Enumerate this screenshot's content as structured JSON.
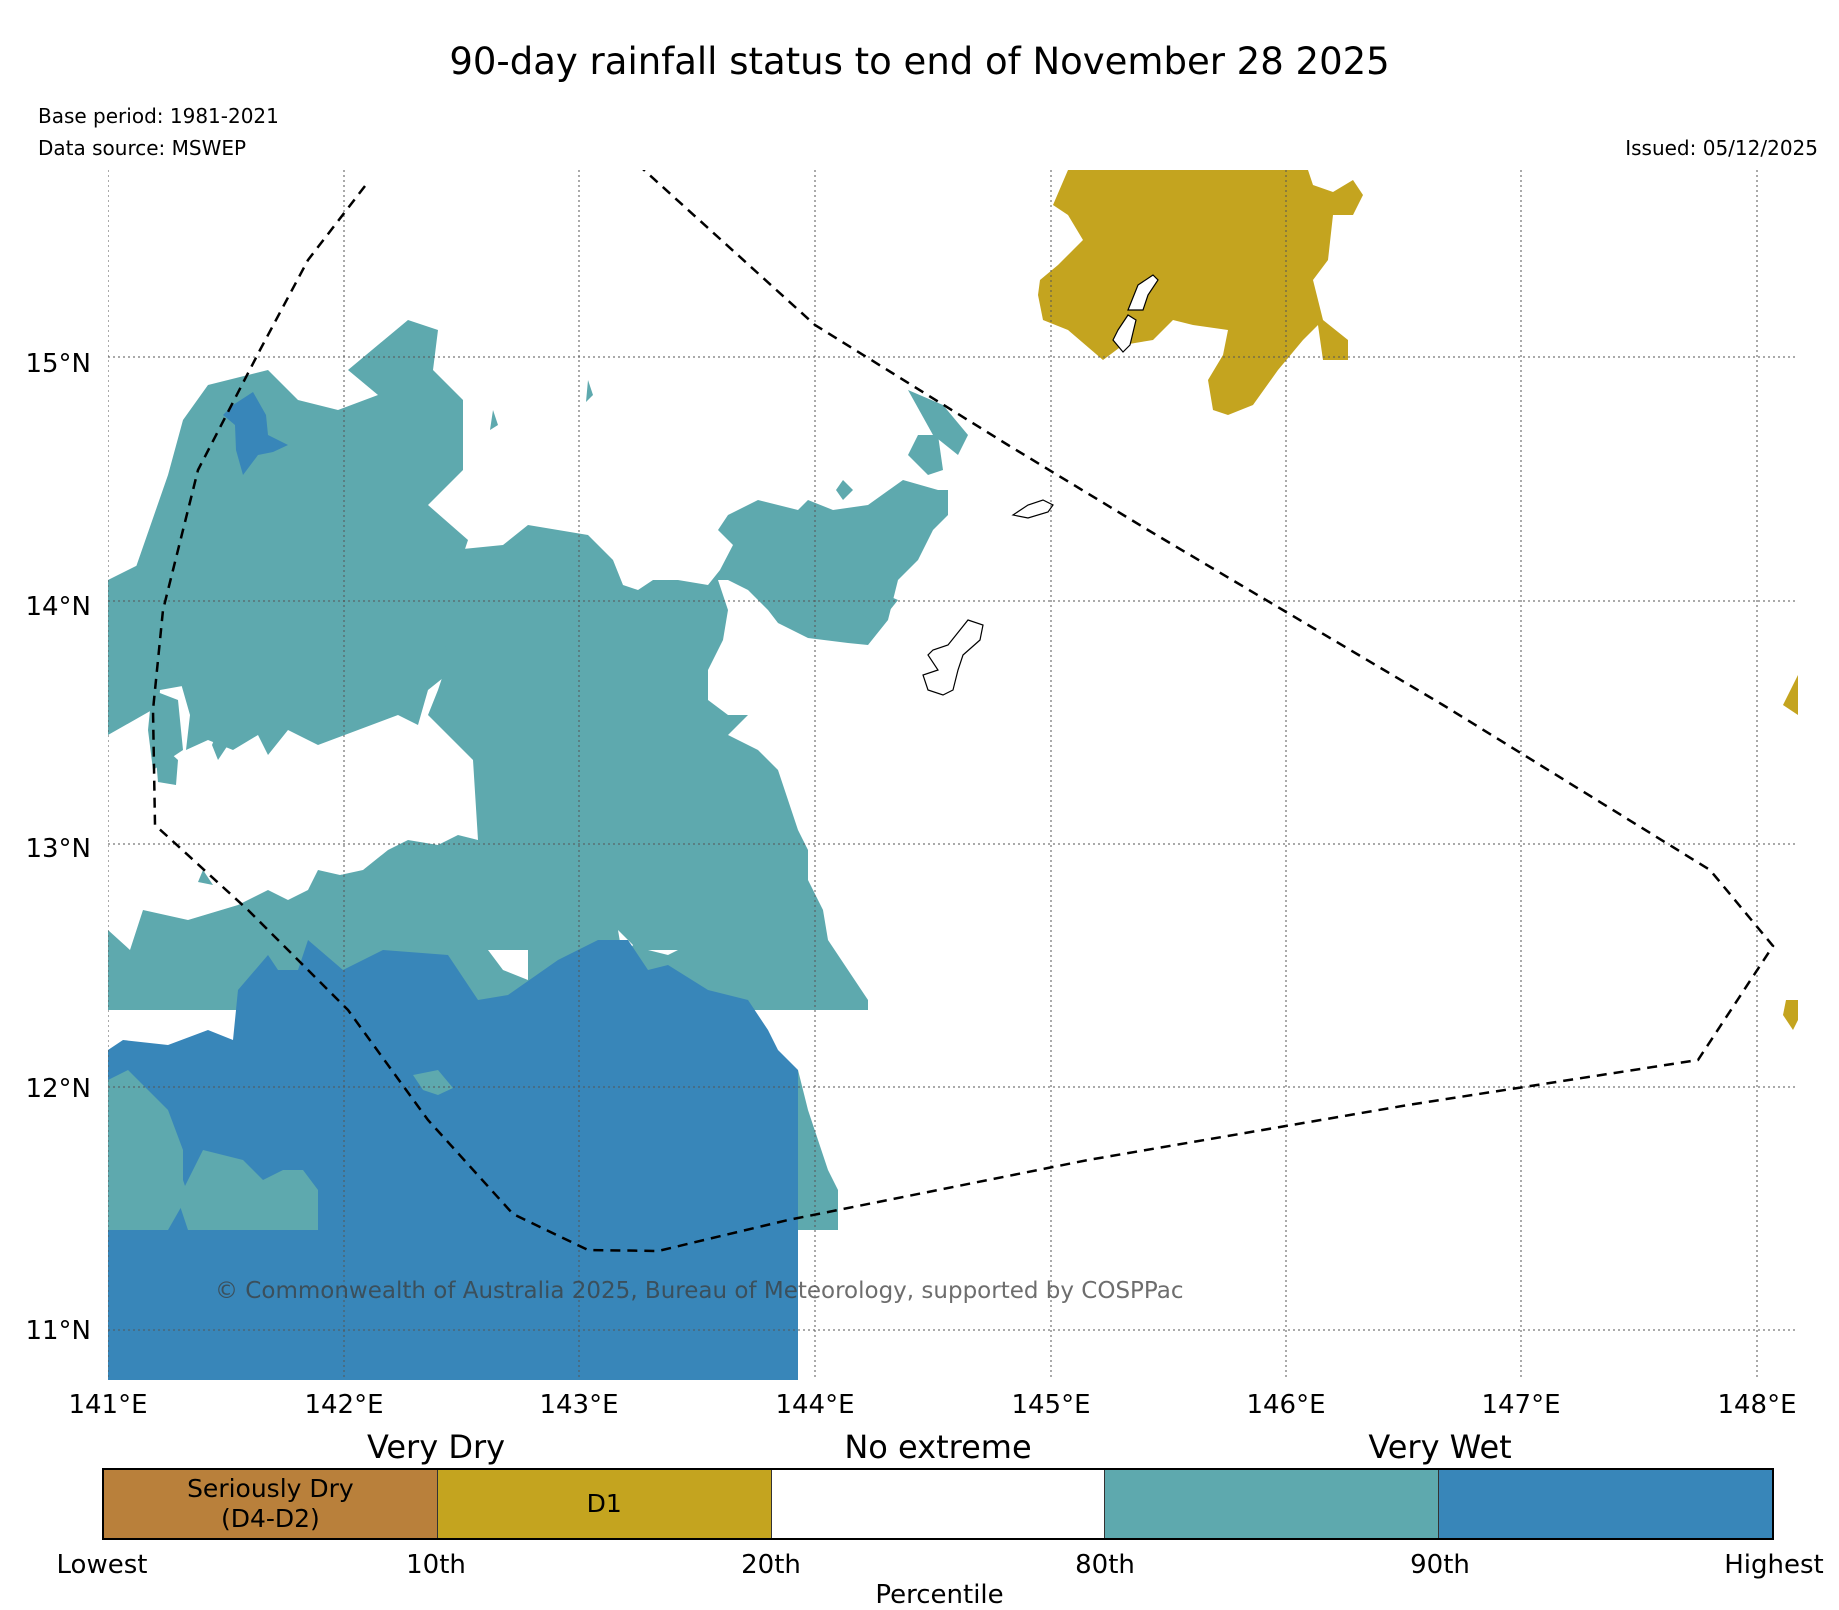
{
  "title": "90-day rainfall status to end of November 28 2025",
  "base_period": "Base period: 1981-2021",
  "data_source": "Data source: MSWEP",
  "issued": "Issued: 05/12/2025",
  "copyright": "© Commonwealth of Australia 2025, Bureau of Meteorology, supported by COSPPac",
  "map": {
    "lon_ticks": [
      "141°E",
      "142°E",
      "143°E",
      "144°E",
      "145°E",
      "146°E",
      "147°E",
      "148°E"
    ],
    "lat_ticks": [
      "15°N",
      "14°N",
      "13°N",
      "12°N",
      "11°N"
    ],
    "extent": {
      "lon_min": 141.0,
      "lon_max": 148.2,
      "lat_min": 10.8,
      "lat_max": 15.8
    }
  },
  "legend": {
    "categories": [
      "Very Dry",
      "No extreme",
      "Very Wet"
    ],
    "segments": [
      {
        "label": "Seriously Dry\n(D4-D2)",
        "color": "#b9803b"
      },
      {
        "label": "D1",
        "color": "#c4a41f"
      },
      {
        "label": "",
        "color": "#ffffff"
      },
      {
        "label": "",
        "color": "#5ea9ae"
      },
      {
        "label": "",
        "color": "#3886b9"
      }
    ],
    "percentiles": [
      "Lowest",
      "10th",
      "20th",
      "80th",
      "90th",
      "Highest"
    ],
    "axis_label": "Percentile"
  },
  "colors": {
    "d1": "#c4a41f",
    "very_wet_80": "#5ea9ae",
    "very_wet_90": "#3886b9",
    "boundary": "#000000"
  }
}
